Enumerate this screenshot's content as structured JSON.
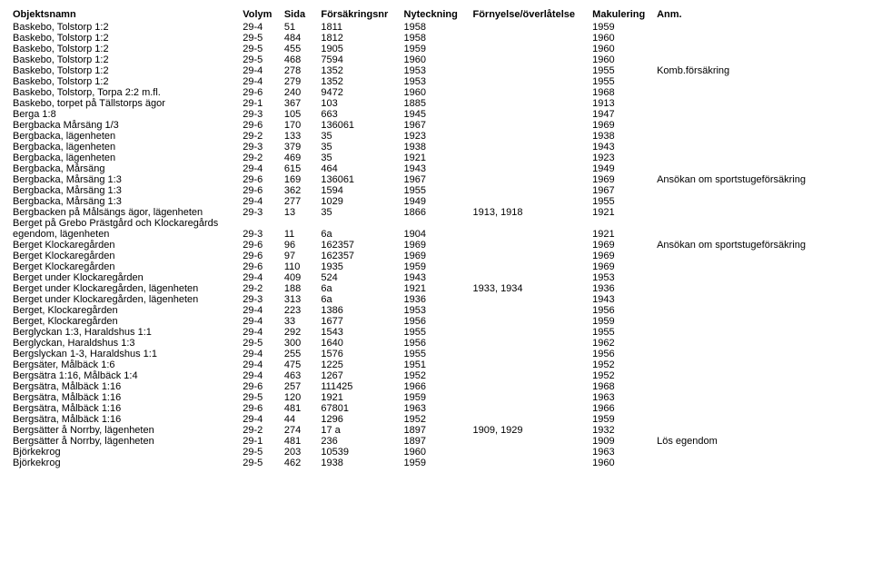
{
  "table": {
    "columns": [
      "Objektsnamn",
      "Volym",
      "Sida",
      "Försäkringsnr",
      "Nyteckning",
      "Förnyelse/överlåtelse",
      "Makulering",
      "Anm."
    ],
    "rows": [
      [
        "Baskebo, Tolstorp 1:2",
        "29-4",
        "51",
        "1811",
        "1958",
        "",
        "1959",
        ""
      ],
      [
        "Baskebo, Tolstorp 1:2",
        "29-5",
        "484",
        "1812",
        "1958",
        "",
        "1960",
        ""
      ],
      [
        "Baskebo, Tolstorp 1:2",
        "29-5",
        "455",
        "1905",
        "1959",
        "",
        "1960",
        ""
      ],
      [
        "Baskebo, Tolstorp 1:2",
        "29-5",
        "468",
        "7594",
        "1960",
        "",
        "1960",
        ""
      ],
      [
        "Baskebo, Tolstorp 1:2",
        "29-4",
        "278",
        "1352",
        "1953",
        "",
        "1955",
        "Komb.försäkring"
      ],
      [
        "Baskebo, Tolstorp 1:2",
        "29-4",
        "279",
        "1352",
        "1953",
        "",
        "1955",
        ""
      ],
      [
        "Baskebo, Tolstorp, Torpa 2:2 m.fl.",
        "29-6",
        "240",
        "9472",
        "1960",
        "",
        "1968",
        ""
      ],
      [
        "Baskebo, torpet på Tällstorps ägor",
        "29-1",
        "367",
        "103",
        "1885",
        "",
        "1913",
        ""
      ],
      [
        "Berga 1:8",
        "29-3",
        "105",
        "663",
        "1945",
        "",
        "1947",
        ""
      ],
      [
        "Bergbacka Mårsäng 1/3",
        "29-6",
        "170",
        "136061",
        "1967",
        "",
        "1969",
        ""
      ],
      [
        "Bergbacka, lägenheten",
        "29-2",
        "133",
        "35",
        "1923",
        "",
        "1938",
        ""
      ],
      [
        "Bergbacka, lägenheten",
        "29-3",
        "379",
        "35",
        "1938",
        "",
        "1943",
        ""
      ],
      [
        "Bergbacka, lägenheten",
        "29-2",
        "469",
        "35",
        "1921",
        "",
        "1923",
        ""
      ],
      [
        "Bergbacka, Mårsäng",
        "29-4",
        "615",
        "464",
        "1943",
        "",
        "1949",
        ""
      ],
      [
        "Bergbacka, Mårsäng 1:3",
        "29-6",
        "169",
        "136061",
        "1967",
        "",
        "1969",
        "Ansökan om sportstugeförsäkring"
      ],
      [
        "Bergbacka, Mårsäng 1:3",
        "29-6",
        "362",
        "1594",
        "1955",
        "",
        "1967",
        ""
      ],
      [
        "Bergbacka, Mårsäng 1:3",
        "29-4",
        "277",
        "1029",
        "1949",
        "",
        "1955",
        ""
      ],
      [
        "Bergbacken på Målsängs ägor, lägenheten",
        "29-3",
        "13",
        "35",
        "1866",
        "1913, 1918",
        "1921",
        ""
      ],
      [
        "Berget  på Grebo Prästgård och Klockaregårds",
        "",
        "",
        "",
        "",
        "",
        "",
        ""
      ],
      [
        "egendom, lägenheten",
        "29-3",
        "11",
        "6a",
        "1904",
        "",
        "1921",
        ""
      ],
      [
        "Berget Klockaregården",
        "29-6",
        "96",
        "162357",
        "1969",
        "",
        "1969",
        "Ansökan om sportstugeförsäkring"
      ],
      [
        "Berget Klockaregården",
        "29-6",
        "97",
        "162357",
        "1969",
        "",
        "1969",
        ""
      ],
      [
        "Berget Klockaregården",
        "29-6",
        "110",
        "1935",
        "1959",
        "",
        "1969",
        ""
      ],
      [
        "Berget under Klockaregården",
        "29-4",
        "409",
        "524",
        "1943",
        "",
        "1953",
        ""
      ],
      [
        "Berget under Klockaregården, lägenheten",
        "29-2",
        "188",
        "6a",
        "1921",
        "1933, 1934",
        "1936",
        ""
      ],
      [
        "Berget under Klockaregården, lägenheten",
        "29-3",
        "313",
        "6a",
        "1936",
        "",
        "1943",
        ""
      ],
      [
        "Berget, Klockaregården",
        "29-4",
        "223",
        "1386",
        "1953",
        "",
        "1956",
        ""
      ],
      [
        "Berget, Klockaregården",
        "29-4",
        "33",
        "1677",
        "1956",
        "",
        "1959",
        ""
      ],
      [
        "Berglyckan 1:3, Haraldshus 1:1",
        "29-4",
        "292",
        "1543",
        "1955",
        "",
        "1955",
        ""
      ],
      [
        "Berglyckan, Haraldshus 1:3",
        "29-5",
        "300",
        "1640",
        "1956",
        "",
        "1962",
        ""
      ],
      [
        "Bergslyckan 1-3, Haraldshus 1:1",
        "29-4",
        "255",
        "1576",
        "1955",
        "",
        "1956",
        ""
      ],
      [
        "Bergsäter, Målbäck 1:6",
        "29-4",
        "475",
        "1225",
        "1951",
        "",
        "1952",
        ""
      ],
      [
        "Bergsätra 1:16, Målbäck 1:4",
        "29-4",
        "463",
        "1267",
        "1952",
        "",
        "1952",
        ""
      ],
      [
        "Bergsätra, Målbäck 1:16",
        "29-6",
        "257",
        "111425",
        "1966",
        "",
        "1968",
        ""
      ],
      [
        "Bergsätra, Målbäck 1:16",
        "29-5",
        "120",
        "1921",
        "1959",
        "",
        "1963",
        ""
      ],
      [
        "Bergsätra, Målbäck 1:16",
        "29-6",
        "481",
        "67801",
        "1963",
        "",
        "1966",
        ""
      ],
      [
        "Bergsätra, Målbäck 1:16",
        "29-4",
        "44",
        "1296",
        "1952",
        "",
        "1959",
        ""
      ],
      [
        "Bergsätter å Norrby, lägenheten",
        "29-2",
        "274",
        "17 a",
        "1897",
        "1909, 1929",
        "1932",
        ""
      ],
      [
        "Bergsätter å Norrby, lägenheten",
        "29-1",
        "481",
        "236",
        "1897",
        "",
        "1909",
        "Lös egendom"
      ],
      [
        "Björkekrog",
        "29-5",
        "203",
        "10539",
        "1960",
        "",
        "1963",
        ""
      ],
      [
        "Björkekrog",
        "29-5",
        "462",
        "1938",
        "1959",
        "",
        "1960",
        ""
      ]
    ]
  }
}
